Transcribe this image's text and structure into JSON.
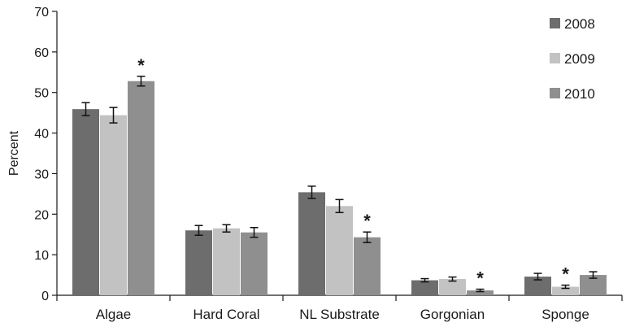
{
  "chart_data": {
    "type": "bar",
    "title": "",
    "xlabel": "",
    "ylabel": "Percent",
    "ylim": [
      0,
      70
    ],
    "yticks": [
      0,
      10,
      20,
      30,
      40,
      50,
      60,
      70
    ],
    "categories": [
      "Algae",
      "Hard Coral",
      "NL Substrate",
      "Gorgonian",
      "Sponge"
    ],
    "series": [
      {
        "name": "2008",
        "color": "#6d6d6d",
        "values": [
          45.9,
          16.0,
          25.4,
          3.7,
          4.6
        ],
        "errors": [
          1.6,
          1.2,
          1.5,
          0.4,
          0.8
        ]
      },
      {
        "name": "2009",
        "color": "#c2c2c2",
        "values": [
          44.4,
          16.5,
          22.0,
          4.0,
          2.1
        ],
        "errors": [
          1.9,
          0.9,
          1.6,
          0.5,
          0.4
        ]
      },
      {
        "name": "2010",
        "color": "#8f8f8f",
        "values": [
          52.8,
          15.5,
          14.3,
          1.2,
          5.0
        ],
        "errors": [
          1.2,
          1.2,
          1.3,
          0.3,
          0.8
        ]
      }
    ],
    "significance": [
      {
        "category_index": 0,
        "series_index": 2,
        "label": "*"
      },
      {
        "category_index": 2,
        "series_index": 2,
        "label": "*"
      },
      {
        "category_index": 3,
        "series_index": 2,
        "label": "*"
      },
      {
        "category_index": 4,
        "series_index": 1,
        "label": "*"
      }
    ],
    "legend_position": "top-right",
    "grid": false
  }
}
